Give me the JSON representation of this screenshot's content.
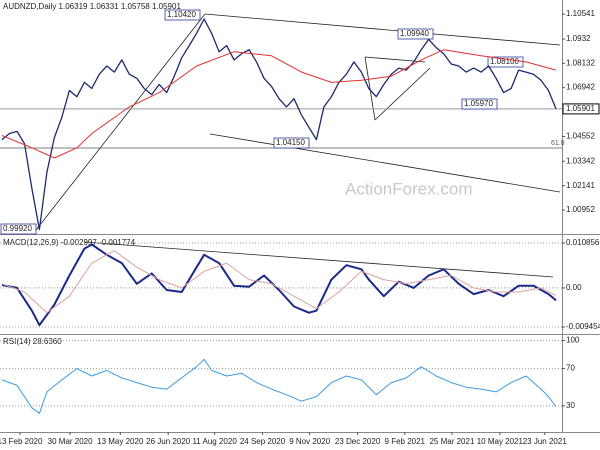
{
  "chart_data": [
    {
      "type": "line",
      "title": "AUDNZD,Daily  1.06319 1.06331 1.05758 1.05901",
      "xlim": [
        0,
        74
      ],
      "ylim": [
        0.9978,
        1.1123
      ],
      "yticks": [
        1.10541,
        1.0932,
        1.08132,
        1.06942,
        1.04552,
        1.03342,
        1.02141,
        1.00952
      ],
      "last_price": 1.05901,
      "annotations": [
        "1.10420",
        "1.09940",
        "1.08100",
        "1.05970",
        "1.04150",
        "0.99920",
        "61.8"
      ],
      "watermark": "ActionForex.com",
      "series": [
        {
          "color": "#1c2b6e",
          "x": [
            0,
            1,
            2,
            3,
            4,
            5,
            6,
            7,
            8,
            9,
            10,
            11,
            12,
            13,
            14,
            15,
            16,
            17,
            18,
            19,
            20,
            21,
            22,
            23,
            24,
            25,
            26,
            27,
            28,
            29,
            30,
            31,
            32,
            33,
            34,
            35,
            36,
            37,
            38,
            39,
            40,
            41,
            42,
            43,
            44,
            45,
            46,
            47,
            48,
            49,
            50,
            51,
            52,
            53,
            54,
            55,
            56,
            57,
            58,
            59,
            60,
            61,
            62,
            63,
            64,
            65,
            66,
            67,
            68,
            69,
            70,
            71,
            72,
            73,
            74
          ],
          "values": [
            1.044,
            1.047,
            1.048,
            1.042,
            1.02,
            1.0,
            1.028,
            1.045,
            1.055,
            1.068,
            1.065,
            1.072,
            1.069,
            1.076,
            1.08,
            1.077,
            1.083,
            1.076,
            1.074,
            1.069,
            1.066,
            1.071,
            1.067,
            1.075,
            1.084,
            1.09,
            1.096,
            1.103,
            1.096,
            1.087,
            1.09,
            1.083,
            1.086,
            1.088,
            1.082,
            1.074,
            1.07,
            1.064,
            1.06,
            1.064,
            1.056,
            1.05,
            1.044,
            1.06,
            1.065,
            1.072,
            1.076,
            1.082,
            1.077,
            1.069,
            1.065,
            1.071,
            1.076,
            1.079,
            1.078,
            1.082,
            1.088,
            1.093,
            1.089,
            1.086,
            1.081,
            1.08,
            1.077,
            1.079,
            1.077,
            1.08,
            1.074,
            1.067,
            1.069,
            1.078,
            1.077,
            1.076,
            1.073,
            1.068,
            1.059
          ]
        },
        {
          "color": "#e03030",
          "x": [
            0,
            4,
            7,
            10,
            12,
            17,
            21,
            26,
            31,
            36,
            40,
            44,
            48,
            52,
            56,
            59,
            64,
            70,
            74
          ],
          "values": [
            1.046,
            1.04,
            1.035,
            1.04,
            1.047,
            1.06,
            1.067,
            1.08,
            1.087,
            1.085,
            1.077,
            1.072,
            1.073,
            1.075,
            1.083,
            1.088,
            1.085,
            1.082,
            1.078
          ]
        }
      ]
    },
    {
      "type": "line",
      "title": "MACD(12,26,9) -0.002997 -0.001774",
      "xlim": [
        0,
        74
      ],
      "ylim": [
        -0.0109,
        0.01255
      ],
      "yticks": [
        0.010856,
        {
          "value": 0,
          "label": "0.00"
        },
        -0.009454
      ],
      "series": [
        {
          "color": "#1b2a8a",
          "x": [
            0,
            2,
            4,
            5,
            7,
            9,
            11,
            12,
            14,
            16,
            18,
            20,
            22,
            24,
            26,
            27,
            29,
            31,
            33,
            35,
            37,
            39,
            41,
            42,
            44,
            46,
            48,
            49,
            51,
            53,
            55,
            57,
            59,
            61,
            63,
            65,
            67,
            69,
            71,
            73,
            74
          ],
          "values": [
            0.0007,
            0.0,
            -0.0055,
            -0.009,
            -0.004,
            0.003,
            0.0095,
            0.0105,
            0.008,
            0.006,
            0.001,
            0.0035,
            -0.0005,
            -0.001,
            0.005,
            0.008,
            0.006,
            0.0005,
            0.0003,
            0.003,
            -0.0005,
            -0.0045,
            -0.006,
            -0.0055,
            0.002,
            0.0055,
            0.0045,
            0.002,
            -0.002,
            0.0015,
            0.0,
            0.003,
            0.0045,
            0.001,
            -0.0015,
            -0.0005,
            -0.002,
            0.0005,
            0.0005,
            -0.0015,
            -0.003
          ]
        },
        {
          "color": "#d9a3a3",
          "x": [
            0,
            3,
            6,
            9,
            12,
            15,
            18,
            21,
            24,
            27,
            30,
            33,
            36,
            39,
            42,
            45,
            48,
            51,
            54,
            57,
            60,
            63,
            66,
            69,
            72,
            74
          ],
          "values": [
            0.001,
            -0.001,
            -0.006,
            -0.002,
            0.006,
            0.009,
            0.005,
            0.002,
            0.0,
            0.004,
            0.006,
            0.002,
            0.001,
            -0.002,
            -0.005,
            -0.001,
            0.004,
            0.002,
            0.001,
            0.002,
            0.003,
            0.0,
            -0.001,
            -0.001,
            0.0,
            -0.0018
          ]
        }
      ]
    },
    {
      "type": "line",
      "title": "RSI(14) 28.6360",
      "xlim": [
        0,
        74
      ],
      "ylim": [
        2,
        106
      ],
      "yticks": [
        100,
        70,
        30
      ],
      "xticks": [
        {
          "value": 2.4,
          "label": "13 Feb 2020"
        },
        {
          "value": 9.1,
          "label": "30 Mar 2020"
        },
        {
          "value": 15.8,
          "label": "13 May 2020"
        },
        {
          "value": 22.2,
          "label": "26 Jun 2020"
        },
        {
          "value": 28.4,
          "label": "11 Aug 2020"
        },
        {
          "value": 34.8,
          "label": "24 Sep 2020"
        },
        {
          "value": 41.1,
          "label": "9 Nov 2020"
        },
        {
          "value": 47.5,
          "label": "23 Dec 2020"
        },
        {
          "value": 53.8,
          "label": "9 Feb 2021"
        },
        {
          "value": 60.1,
          "label": "25 Mar 2021"
        },
        {
          "value": 66.5,
          "label": "10 May 2021"
        },
        {
          "value": 72.5,
          "label": "23 Jun 2021"
        }
      ],
      "series": [
        {
          "color": "#3d9be0",
          "x": [
            0,
            2,
            4,
            5,
            6,
            8,
            10,
            12,
            14,
            16,
            18,
            20,
            22,
            24,
            26,
            27,
            28,
            30,
            32,
            34,
            36,
            38,
            40,
            42,
            44,
            46,
            48,
            50,
            52,
            54,
            56,
            58,
            60,
            62,
            64,
            66,
            68,
            70,
            72,
            73,
            74
          ],
          "values": [
            58,
            52,
            28,
            22,
            45,
            58,
            70,
            62,
            68,
            60,
            55,
            50,
            48,
            60,
            72,
            80,
            68,
            62,
            65,
            55,
            48,
            42,
            35,
            40,
            55,
            62,
            58,
            42,
            55,
            60,
            72,
            62,
            55,
            50,
            48,
            45,
            55,
            62,
            48,
            40,
            29
          ]
        }
      ]
    }
  ]
}
